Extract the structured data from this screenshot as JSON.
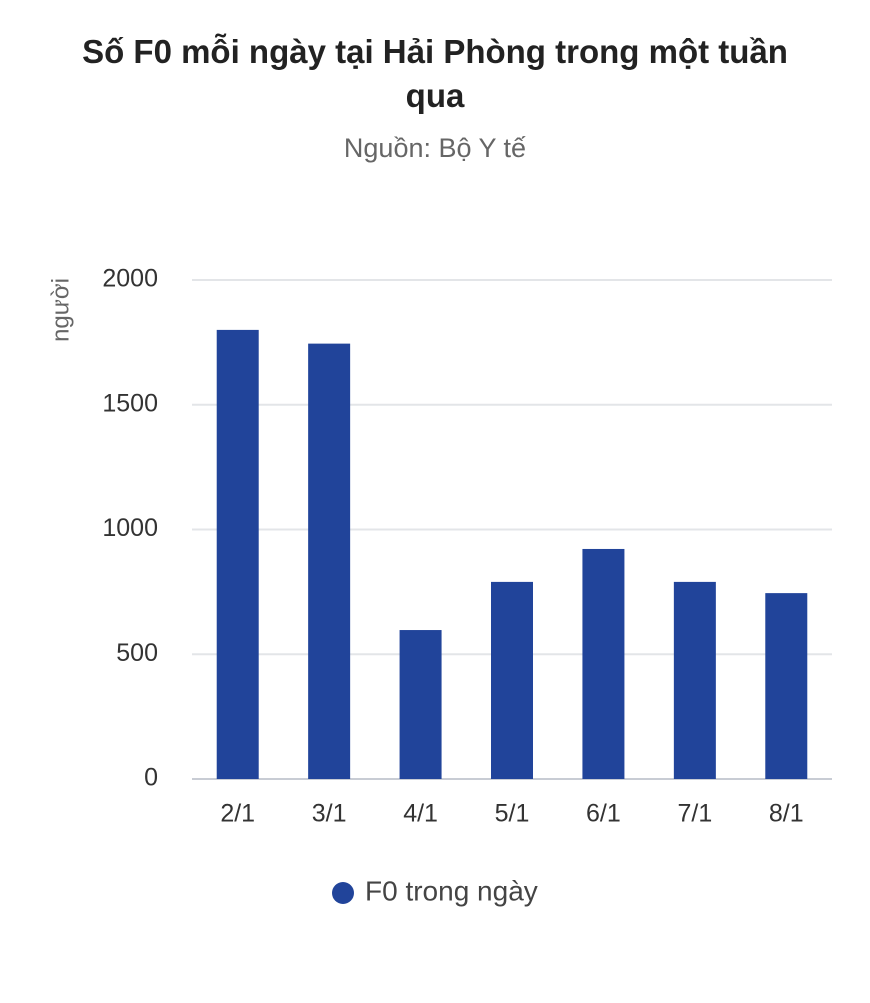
{
  "chart_data": {
    "type": "bar",
    "title": "Số F0 mỗi ngày tại Hải Phòng trong một tuần qua",
    "subtitle": "Nguồn: Bộ Y tế",
    "y_label": "người",
    "categories": [
      "2/1",
      "3/1",
      "4/1",
      "5/1",
      "6/1",
      "7/1",
      "8/1"
    ],
    "series": [
      {
        "name": "F0 trong ngày",
        "color": "#21449a",
        "values": [
          1800,
          1745,
          597,
          790,
          922,
          790,
          745
        ]
      }
    ],
    "ylim": [
      0,
      2000
    ],
    "yticks": [
      0,
      500,
      1000,
      1500,
      2000
    ],
    "grid": true,
    "legend": "bottom"
  }
}
